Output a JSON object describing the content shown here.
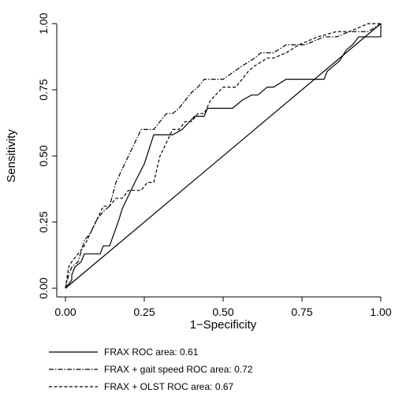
{
  "chart_data": {
    "type": "line",
    "xlabel": "1−Specificity",
    "ylabel": "Sensitivity",
    "xlim": [
      0,
      1
    ],
    "ylim": [
      0,
      1
    ],
    "xticks": [
      {
        "value": 0,
        "label": "0.00"
      },
      {
        "value": 0.25,
        "label": "0.25"
      },
      {
        "value": 0.5,
        "label": "0.50"
      },
      {
        "value": 0.75,
        "label": "0.75"
      },
      {
        "value": 1,
        "label": "1.00"
      }
    ],
    "yticks": [
      {
        "value": 0,
        "label": "0.00"
      },
      {
        "value": 0.25,
        "label": "0.25"
      },
      {
        "value": 0.5,
        "label": "0.50"
      },
      {
        "value": 0.75,
        "label": "0.75"
      },
      {
        "value": 1,
        "label": "1.00"
      }
    ],
    "grid": false,
    "legend_position": "bottom",
    "reference_line": {
      "x": [
        0,
        1
      ],
      "y": [
        0,
        1
      ]
    },
    "series": [
      {
        "name": "FRAX ROC area: 0.61",
        "dash": "solid",
        "x": [
          0,
          0.02,
          0.02,
          0.03,
          0.05,
          0.06,
          0.08,
          0.11,
          0.12,
          0.14,
          0.17,
          0.18,
          0.2,
          0.22,
          0.25,
          0.28,
          0.34,
          0.37,
          0.41,
          0.44,
          0.45,
          0.49,
          0.53,
          0.56,
          0.59,
          0.61,
          0.64,
          0.66,
          0.7,
          0.76,
          0.82,
          0.83,
          0.85,
          0.87,
          0.89,
          0.91,
          0.93,
          0.96,
          1,
          1
        ],
        "y": [
          0,
          0.03,
          0.05,
          0.08,
          0.1,
          0.13,
          0.13,
          0.13,
          0.16,
          0.16,
          0.26,
          0.3,
          0.35,
          0.4,
          0.47,
          0.58,
          0.58,
          0.6,
          0.65,
          0.65,
          0.68,
          0.68,
          0.68,
          0.71,
          0.73,
          0.73,
          0.76,
          0.76,
          0.79,
          0.79,
          0.79,
          0.82,
          0.84,
          0.86,
          0.9,
          0.92,
          0.95,
          0.95,
          0.95,
          1
        ]
      },
      {
        "name": "FRAX + gait speed ROC area: 0.72",
        "dash": "dashdot",
        "x": [
          0,
          0.01,
          0.02,
          0.04,
          0.06,
          0.08,
          0.1,
          0.12,
          0.14,
          0.16,
          0.18,
          0.2,
          0.22,
          0.24,
          0.26,
          0.28,
          0.3,
          0.32,
          0.34,
          0.36,
          0.38,
          0.4,
          0.42,
          0.44,
          0.46,
          0.5,
          0.56,
          0.6,
          0.62,
          0.64,
          0.66,
          0.7,
          0.76,
          0.82,
          0.86,
          0.9,
          0.96,
          1
        ],
        "y": [
          0,
          0.05,
          0.08,
          0.1,
          0.18,
          0.21,
          0.26,
          0.29,
          0.31,
          0.4,
          0.45,
          0.5,
          0.55,
          0.6,
          0.6,
          0.6,
          0.63,
          0.66,
          0.66,
          0.68,
          0.71,
          0.74,
          0.76,
          0.79,
          0.79,
          0.79,
          0.84,
          0.87,
          0.89,
          0.89,
          0.89,
          0.92,
          0.92,
          0.95,
          0.95,
          0.97,
          0.97,
          1
        ]
      },
      {
        "name": "FRAX + OLST ROC area: 0.67",
        "dash": "dashed",
        "x": [
          0,
          0.01,
          0.02,
          0.04,
          0.06,
          0.08,
          0.1,
          0.12,
          0.14,
          0.16,
          0.18,
          0.2,
          0.22,
          0.24,
          0.26,
          0.28,
          0.3,
          0.32,
          0.34,
          0.36,
          0.38,
          0.4,
          0.42,
          0.44,
          0.46,
          0.5,
          0.54,
          0.56,
          0.58,
          0.6,
          0.64,
          0.66,
          0.7,
          0.74,
          0.8,
          0.86,
          0.9,
          0.96,
          1
        ],
        "y": [
          0,
          0.08,
          0.1,
          0.13,
          0.16,
          0.21,
          0.26,
          0.31,
          0.31,
          0.34,
          0.34,
          0.37,
          0.37,
          0.37,
          0.4,
          0.4,
          0.5,
          0.55,
          0.6,
          0.6,
          0.63,
          0.63,
          0.66,
          0.66,
          0.71,
          0.76,
          0.76,
          0.79,
          0.82,
          0.84,
          0.87,
          0.87,
          0.89,
          0.92,
          0.95,
          0.97,
          0.97,
          1,
          1
        ]
      }
    ]
  }
}
